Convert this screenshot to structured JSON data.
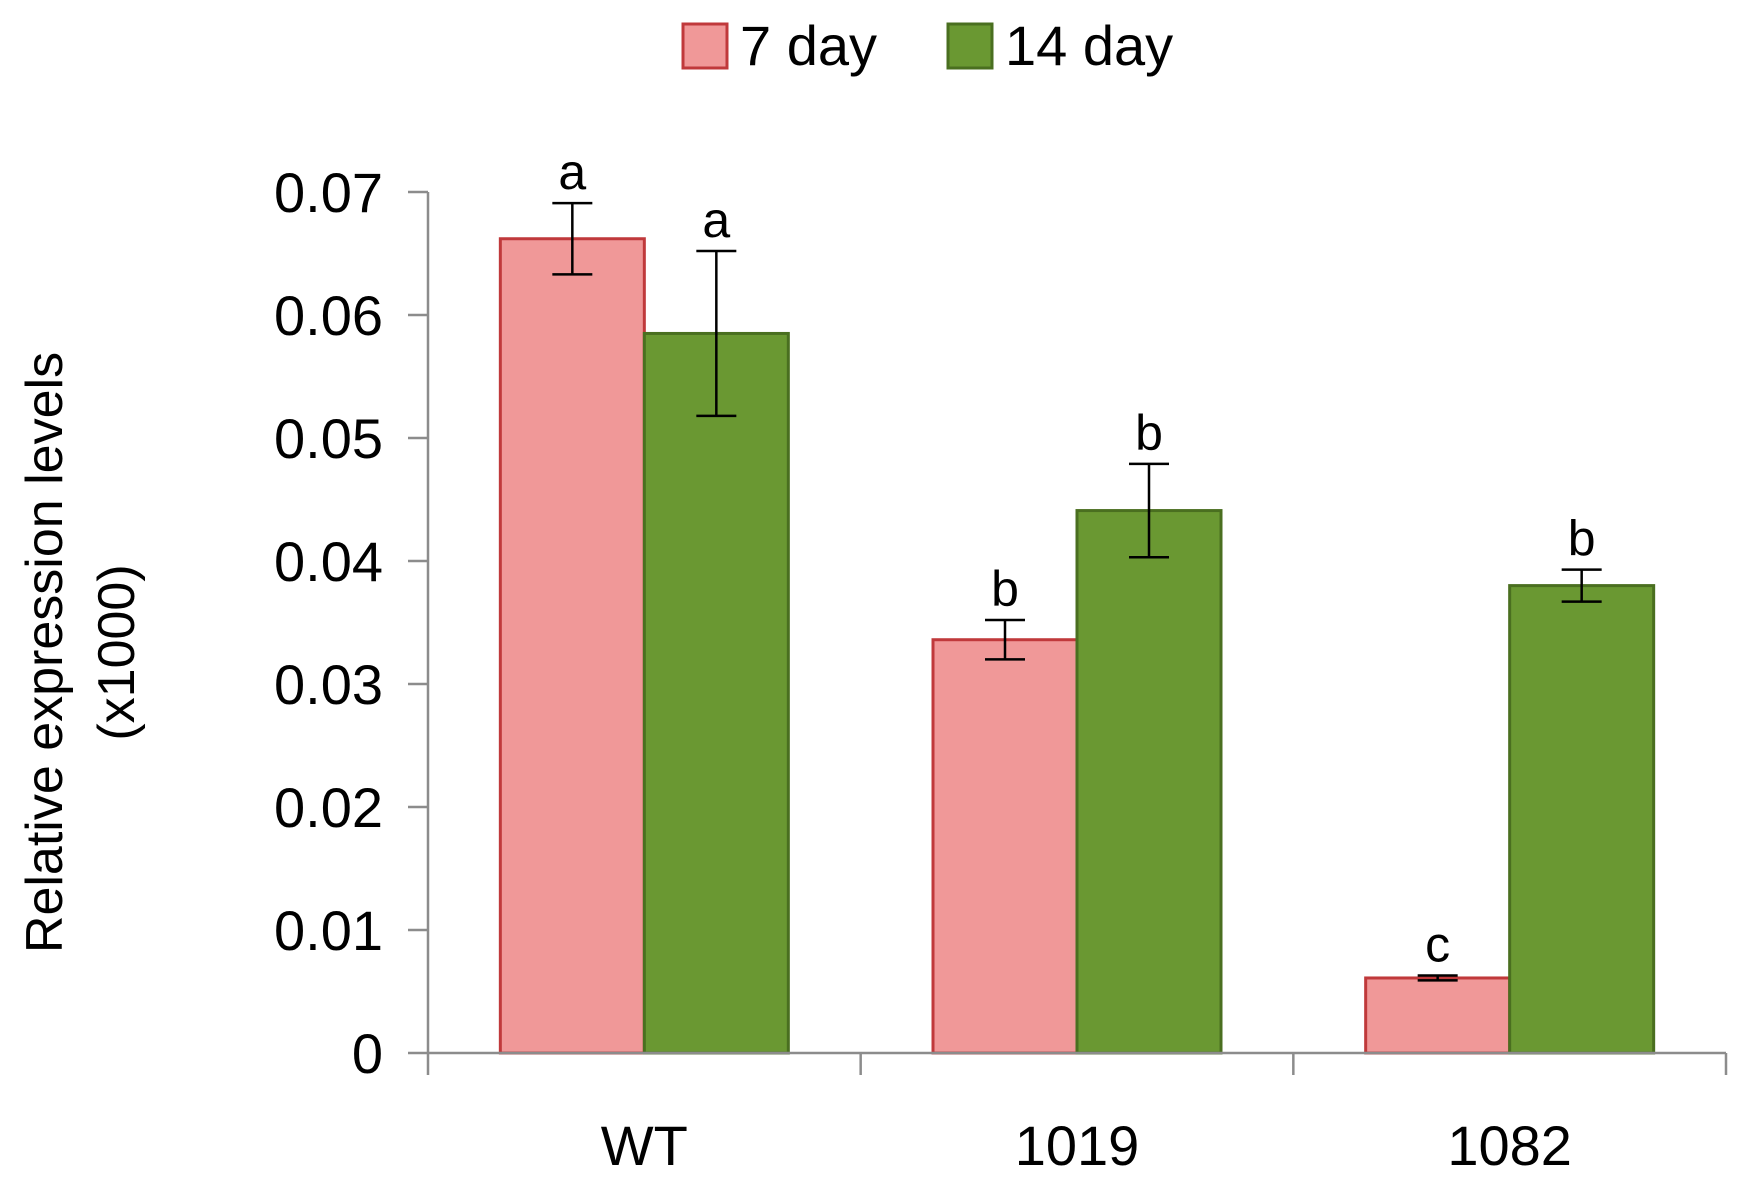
{
  "chart_data": {
    "type": "bar",
    "title": "",
    "xlabel": "",
    "ylabel": "Relative expression levels",
    "ylabel_line2": "(x1000)",
    "categories": [
      "WT",
      "1019",
      "1082"
    ],
    "ylim": [
      0,
      0.07
    ],
    "yticks": [
      0,
      0.01,
      0.02,
      0.03,
      0.04,
      0.05,
      0.06,
      0.07
    ],
    "ytick_labels": [
      "0",
      "0.01",
      "0.02",
      "0.03",
      "0.04",
      "0.05",
      "0.06",
      "0.07"
    ],
    "legend_position": "top-center",
    "grid": false,
    "series": [
      {
        "name": "7 day",
        "fill": "#f09898",
        "stroke": "#c0393b",
        "values": [
          0.0662,
          0.0336,
          0.0061
        ],
        "errors": [
          0.0029,
          0.0016,
          0.0002
        ],
        "significance": [
          "a",
          "b",
          "c"
        ]
      },
      {
        "name": "14 day",
        "fill": "#6a9832",
        "stroke": "#4a6f20",
        "values": [
          0.0585,
          0.0441,
          0.038
        ],
        "errors": [
          0.0067,
          0.0038,
          0.0013
        ],
        "significance": [
          "a",
          "b",
          "b"
        ]
      }
    ]
  }
}
